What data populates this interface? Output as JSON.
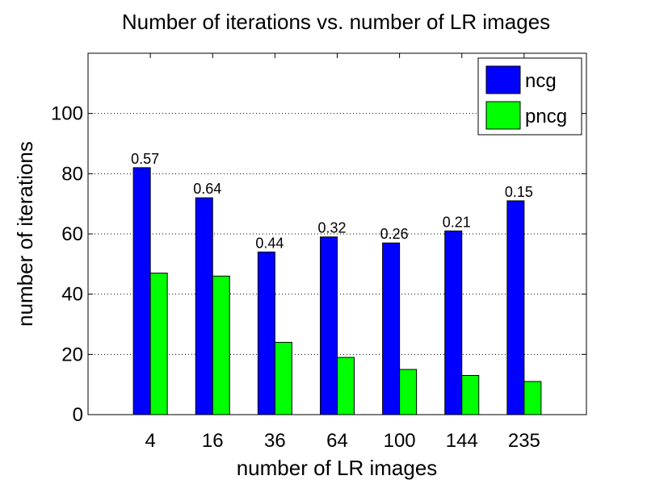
{
  "chart_data": {
    "type": "bar",
    "title": "Number of iterations vs. number of LR images",
    "xlabel": "number of LR images",
    "ylabel": "number of iterations",
    "categories": [
      "4",
      "16",
      "36",
      "64",
      "100",
      "144",
      "235"
    ],
    "series": [
      {
        "name": "ncg",
        "color": "#0000ff",
        "values": [
          82,
          72,
          54,
          59,
          57,
          61,
          71
        ]
      },
      {
        "name": "pncg",
        "color": "#00ff00",
        "values": [
          47,
          46,
          24,
          19,
          15,
          13,
          11
        ]
      }
    ],
    "bar_annotations": [
      "0.57",
      "0.64",
      "0.44",
      "0.32",
      "0.26",
      "0.21",
      "0.15"
    ],
    "ylim": [
      0,
      120
    ],
    "yticks": [
      0,
      20,
      40,
      60,
      80,
      100
    ],
    "grid": "horizontal-dotted",
    "legend": "top-right"
  }
}
